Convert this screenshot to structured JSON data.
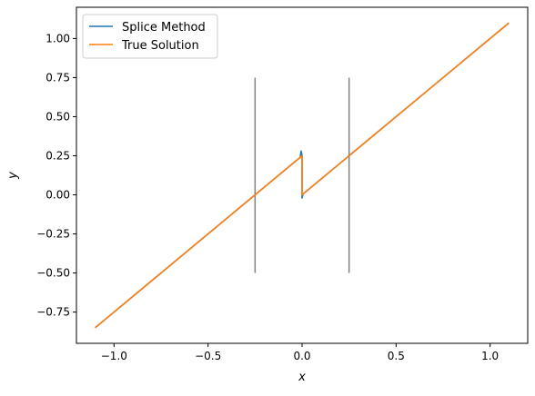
{
  "chart_data": {
    "type": "line",
    "title": "",
    "xlabel": "x",
    "ylabel": "y",
    "xlim": [
      -1.2,
      1.2
    ],
    "ylim": [
      -0.95,
      1.2
    ],
    "xticks": [
      -1.0,
      -0.5,
      0.0,
      0.5,
      1.0
    ],
    "xtick_labels": [
      "−1.0",
      "−0.5",
      "0.0",
      "0.5",
      "1.0"
    ],
    "yticks": [
      -0.75,
      -0.5,
      -0.25,
      0.0,
      0.25,
      0.5,
      0.75,
      1.0
    ],
    "ytick_labels": [
      "−0.75",
      "−0.50",
      "−0.25",
      "0.00",
      "0.25",
      "0.50",
      "0.75",
      "1.00"
    ],
    "grid": false,
    "legend_position": "top-left",
    "series": [
      {
        "name": "Splice Method",
        "color": "#1f77b4",
        "points": [
          [
            -1.1,
            -0.85
          ],
          [
            -0.01,
            0.24
          ],
          [
            -0.005,
            0.28
          ],
          [
            0.0,
            0.25
          ],
          [
            0.0,
            0.0
          ],
          [
            0.0,
            -0.02
          ],
          [
            0.005,
            0.005
          ],
          [
            1.1,
            1.1
          ]
        ]
      },
      {
        "name": "True Solution",
        "color": "#ff7f0e",
        "points": [
          [
            -1.1,
            -0.85
          ],
          [
            0.0,
            0.25
          ],
          [
            0.0,
            0.0
          ],
          [
            1.1,
            1.1
          ]
        ]
      }
    ],
    "vertical_lines": [
      {
        "x": -0.25,
        "ymin": -0.5,
        "ymax": 0.75,
        "color": "#808080"
      },
      {
        "x": 0.25,
        "ymin": -0.5,
        "ymax": 0.75,
        "color": "#808080"
      }
    ]
  }
}
